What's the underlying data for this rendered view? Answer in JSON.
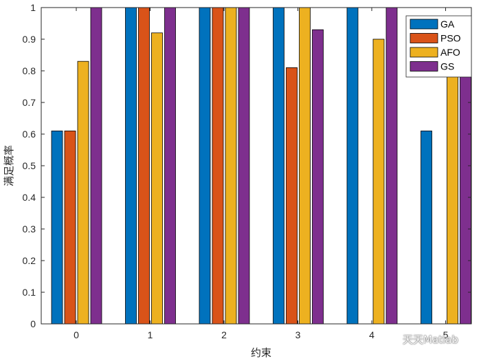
{
  "chart_data": {
    "type": "bar",
    "categories": [
      "0",
      "1",
      "2",
      "3",
      "4",
      "5"
    ],
    "series": [
      {
        "name": "GA",
        "color": "#0072BD",
        "values": [
          0.61,
          1,
          1,
          1,
          1,
          0.61
        ]
      },
      {
        "name": "PSO",
        "color": "#D95319",
        "values": [
          0.61,
          1,
          1,
          0.81,
          0,
          0
        ]
      },
      {
        "name": "AFO",
        "color": "#EDB120",
        "values": [
          0.83,
          0.92,
          1,
          1,
          0.9,
          0.8
        ]
      },
      {
        "name": "GS",
        "color": "#7E2F8E",
        "values": [
          1,
          1,
          1,
          0.93,
          1,
          0.8
        ]
      }
    ],
    "xlabel": "约束",
    "ylabel": "满足概率",
    "ylim": [
      0,
      1
    ],
    "yticks": [
      "0",
      "0.1",
      "0.2",
      "0.3",
      "0.4",
      "0.5",
      "0.6",
      "0.7",
      "0.8",
      "0.9",
      "1"
    ],
    "grid": false,
    "legend_position": "top-right"
  },
  "watermark": {
    "text": "天天Matlab",
    "icon": "wechat-icon"
  }
}
